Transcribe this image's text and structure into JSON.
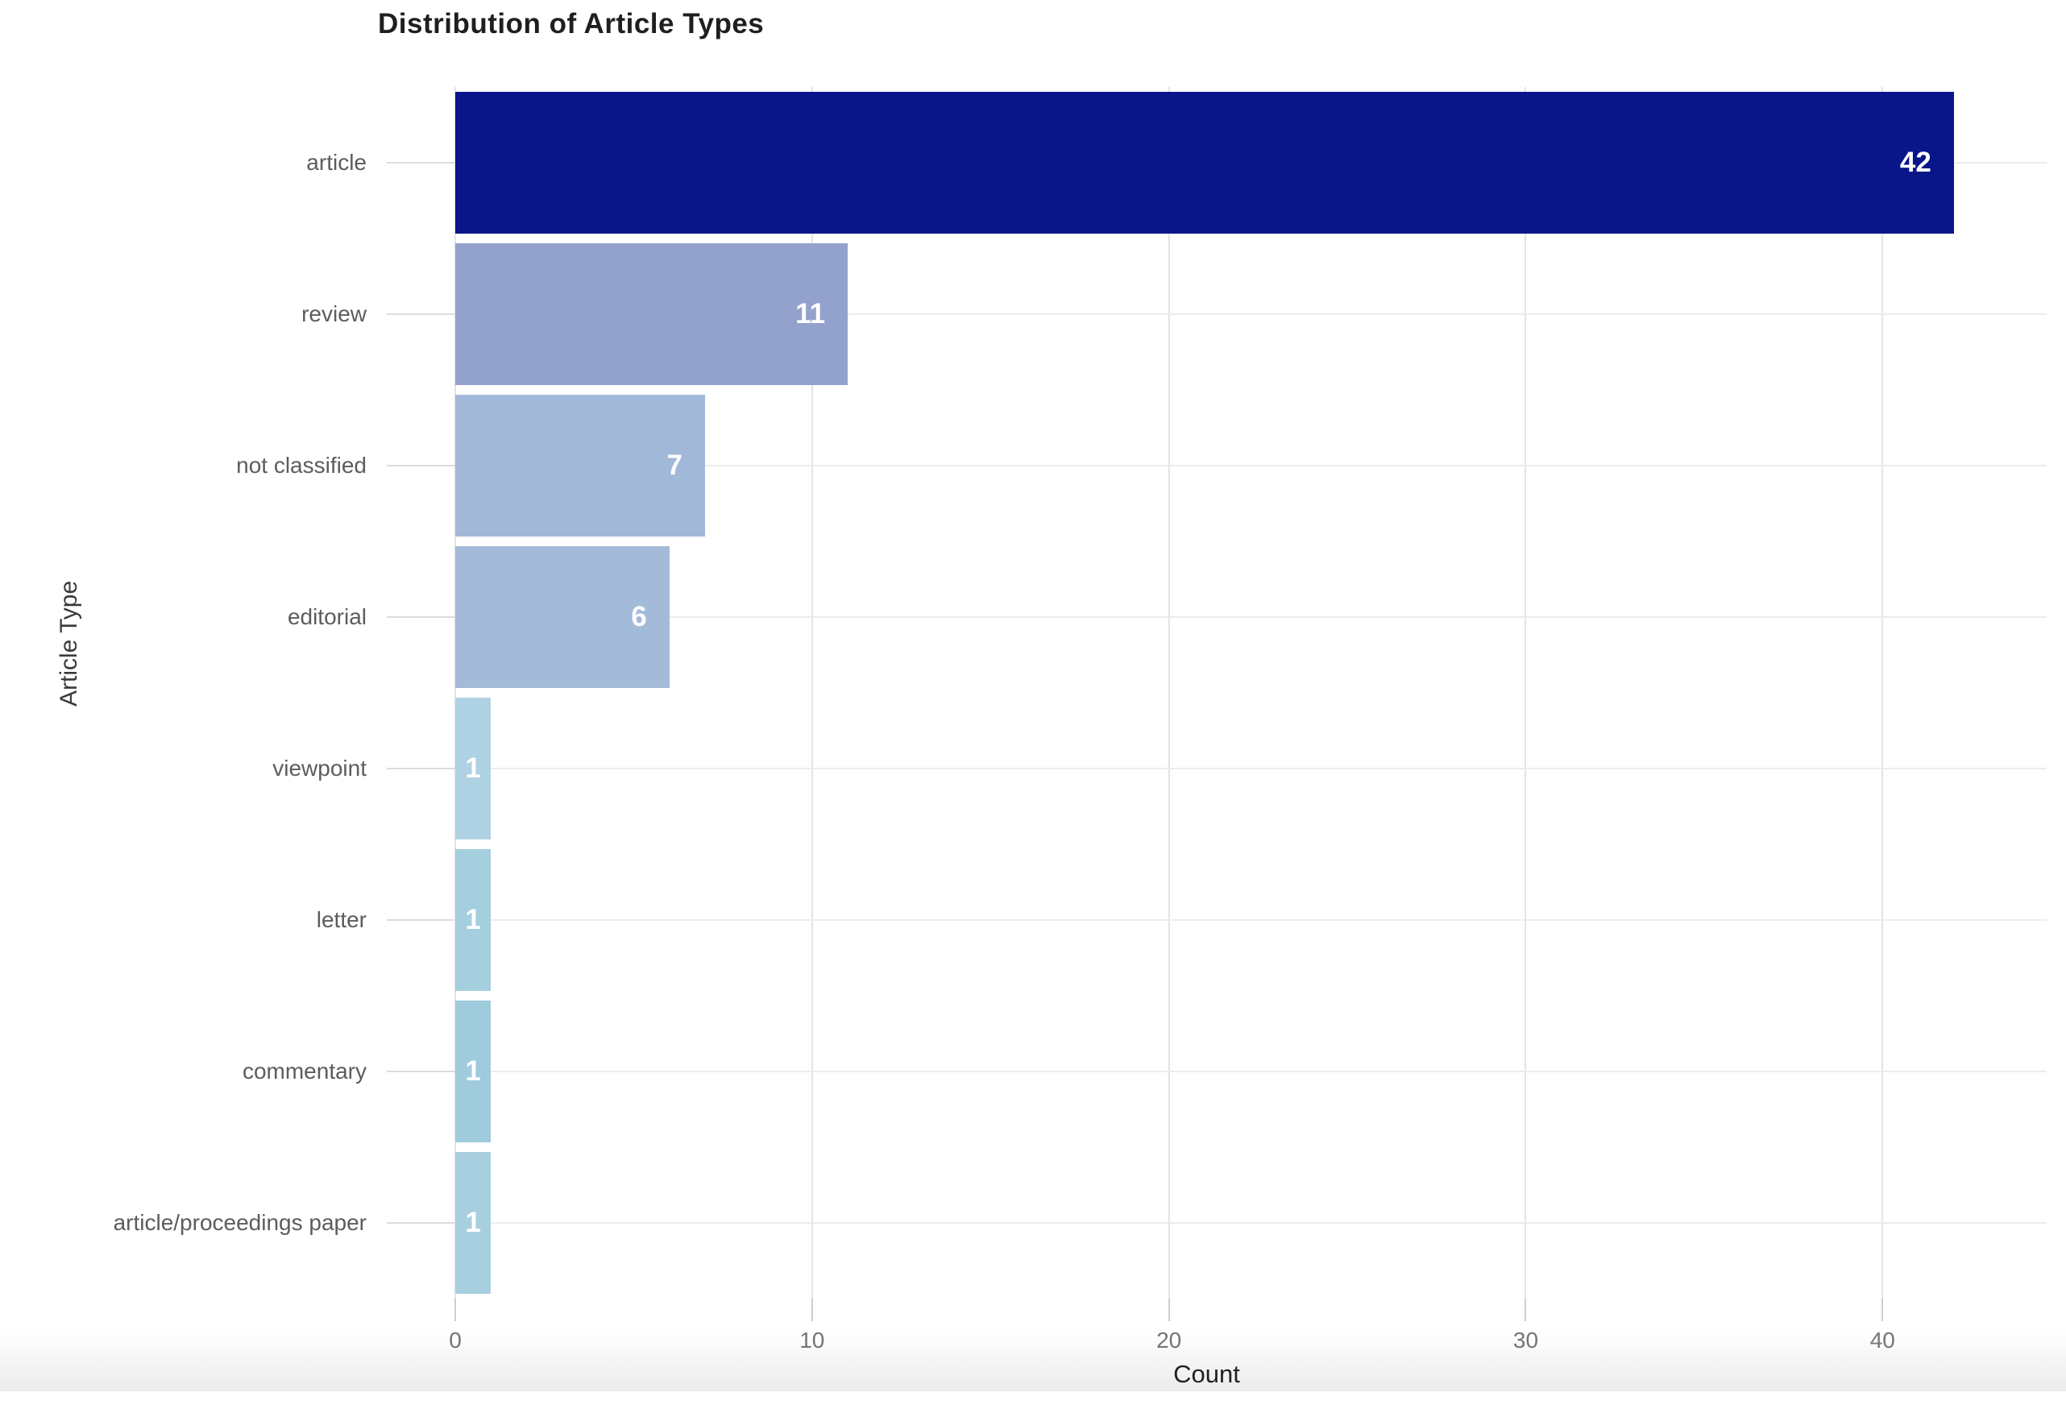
{
  "chart_data": {
    "type": "bar",
    "orientation": "horizontal",
    "title": "Distribution of Article Types",
    "xlabel": "Count",
    "ylabel": "Article Type",
    "categories": [
      "article",
      "review",
      "not classified",
      "editorial",
      "viewpoint",
      "letter",
      "commentary",
      "article/proceedings paper"
    ],
    "values": [
      42,
      11,
      7,
      6,
      1,
      1,
      1,
      1
    ],
    "bar_colors": [
      "#081689",
      "#93a2cd",
      "#a2b8d8",
      "#a4bad9",
      "#aed2e3",
      "#a5cede",
      "#a0cbdc",
      "#a8cfe0"
    ],
    "value_labels": [
      "42",
      "11",
      "7",
      "6",
      "1",
      "1",
      "1",
      "1"
    ],
    "x_ticks": [
      "0",
      "10",
      "20",
      "30",
      "40"
    ],
    "x_tick_values": [
      0,
      10,
      20,
      30,
      40
    ],
    "xlim": [
      0,
      44.6
    ],
    "grid": true,
    "legend": "none",
    "value_label_color": "#ffffff"
  },
  "colors": {
    "grid_vertical": "#e4e4e4",
    "grid_horizontal": "#ececec",
    "title_text": "#1f1f1f",
    "axis_text": "#757575",
    "category_text": "#5c5c5c",
    "background": "#ffffff"
  }
}
